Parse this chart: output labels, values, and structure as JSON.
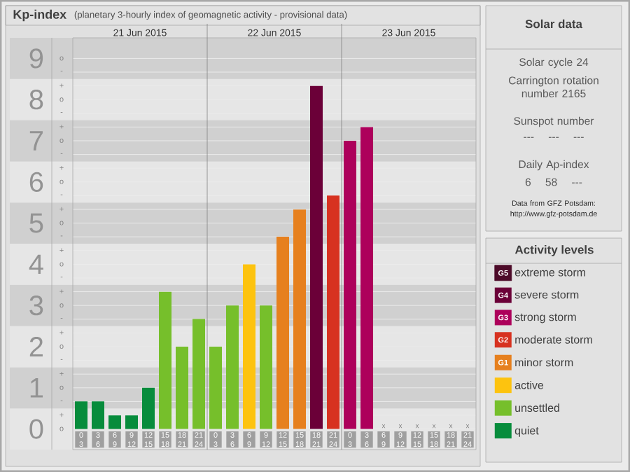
{
  "chart_data": [
    {
      "type": "bar",
      "title": "Kp-index",
      "subtitle": "(planetary 3-hourly index of geomagnetic activity - provisional data)",
      "categories": [
        "0 3",
        "3 6",
        "6 9",
        "9 12",
        "12 15",
        "15 18",
        "18 21",
        "21 24",
        "0 3",
        "3 6",
        "6 9",
        "9 12",
        "12 15",
        "15 18",
        "18 21",
        "21 24",
        "0 3",
        "3 6",
        "6 9",
        "9 12",
        "12 15",
        "15 18",
        "18 21",
        "21 24"
      ],
      "series": [
        {
          "name": "extreme storm",
          "color": "#4d0b29",
          "values": [
            null,
            null,
            null,
            null,
            null,
            null,
            null,
            null,
            null,
            null,
            null,
            null,
            null,
            null,
            null,
            null,
            null,
            null,
            null,
            null,
            null,
            null,
            null,
            null
          ]
        },
        {
          "name": "severe storm",
          "color": "#6b0038",
          "values": [
            null,
            null,
            null,
            null,
            null,
            null,
            null,
            null,
            null,
            null,
            null,
            null,
            null,
            null,
            8.33,
            null,
            null,
            null,
            null,
            null,
            null,
            null,
            null,
            null
          ]
        },
        {
          "name": "strong storm",
          "color": "#ad005b",
          "values": [
            null,
            null,
            null,
            null,
            null,
            null,
            null,
            null,
            null,
            null,
            null,
            null,
            null,
            null,
            null,
            null,
            7,
            7.33,
            null,
            null,
            null,
            null,
            null,
            null
          ]
        },
        {
          "name": "moderate storm",
          "color": "#d73220",
          "values": [
            null,
            null,
            null,
            null,
            null,
            null,
            null,
            null,
            null,
            null,
            null,
            null,
            null,
            null,
            null,
            5.67,
            null,
            null,
            null,
            null,
            null,
            null,
            null,
            null
          ]
        },
        {
          "name": "minor storm",
          "color": "#e6801e",
          "values": [
            null,
            null,
            null,
            null,
            null,
            null,
            null,
            null,
            null,
            null,
            null,
            null,
            4.67,
            5.33,
            null,
            null,
            null,
            null,
            null,
            null,
            null,
            null,
            null,
            null
          ]
        },
        {
          "name": "active",
          "color": "#fdc30f",
          "values": [
            null,
            null,
            null,
            null,
            null,
            null,
            null,
            null,
            null,
            null,
            4,
            null,
            null,
            null,
            null,
            null,
            null,
            null,
            null,
            null,
            null,
            null,
            null,
            null
          ]
        },
        {
          "name": "unsettled",
          "color": "#76bf2b",
          "values": [
            null,
            null,
            null,
            null,
            null,
            3.33,
            2,
            2.67,
            2,
            3,
            null,
            3,
            null,
            null,
            null,
            null,
            null,
            null,
            null,
            null,
            null,
            null,
            null,
            null
          ]
        },
        {
          "name": "quiet",
          "color": "#078c3c",
          "values": [
            0.67,
            0.67,
            0.33,
            0.33,
            1,
            null,
            null,
            null,
            null,
            null,
            null,
            null,
            null,
            null,
            null,
            null,
            null,
            null,
            null,
            null,
            null,
            null,
            null,
            null
          ],
          "value_labels": [
            null,
            null,
            null,
            null,
            null,
            null,
            null,
            null,
            null,
            null,
            null,
            null,
            null,
            null,
            null,
            null,
            null,
            null,
            "x",
            "x",
            "x",
            "x",
            "x",
            "x"
          ]
        }
      ],
      "ylim": [
        -0.5,
        9.5
      ],
      "yticks": [
        0,
        1,
        2,
        3,
        4,
        5,
        6,
        7,
        8,
        9
      ],
      "grid": "y",
      "legend": "right",
      "legend_title": "Activity levels",
      "bands": [
        {
          "axis": "y",
          "from": -0.5,
          "to": 0.5,
          "color": "#e6e6e6"
        },
        {
          "axis": "y",
          "from": 0.5,
          "to": 1.5,
          "color": "#d0d0d0"
        },
        {
          "axis": "y",
          "from": 1.5,
          "to": 2.5,
          "color": "#e6e6e6"
        },
        {
          "axis": "y",
          "from": 2.5,
          "to": 3.5,
          "color": "#d0d0d0"
        },
        {
          "axis": "y",
          "from": 3.5,
          "to": 4.5,
          "color": "#e6e6e6"
        },
        {
          "axis": "y",
          "from": 4.5,
          "to": 5.5,
          "color": "#d0d0d0"
        },
        {
          "axis": "y",
          "from": 5.5,
          "to": 6.5,
          "color": "#e6e6e6"
        },
        {
          "axis": "y",
          "from": 6.5,
          "to": 7.5,
          "color": "#d0d0d0"
        },
        {
          "axis": "y",
          "from": 7.5,
          "to": 8.5,
          "color": "#e6e6e6"
        },
        {
          "axis": "y",
          "from": 8.5,
          "to": 9.5,
          "color": "#d0d0d0"
        }
      ],
      "annotations": [
        "G5",
        "G4",
        "G3",
        "G2",
        "G1",
        "o",
        "+",
        "-",
        "o",
        "+",
        "-",
        "o",
        "+",
        "-",
        "o",
        "+",
        "-",
        "o",
        "+",
        "-",
        "o",
        "+",
        "-",
        "o",
        "+",
        "-",
        "o",
        "+",
        "-",
        "o",
        "+",
        "-",
        "o",
        "21 Jun 2015",
        "22 Jun 2015",
        "23 Jun 2015"
      ]
    },
    {
      "type": "other",
      "title": "Solar data",
      "annotations": [
        "Solar cycle 24",
        "Carrington rotation number 2165",
        "Sunspot number",
        "--- --- ---",
        "Daily Ap-index",
        "6 58 ---",
        "Data from GFZ Potsdam:",
        "http://www.gfz-potsdam.de"
      ]
    }
  ]
}
